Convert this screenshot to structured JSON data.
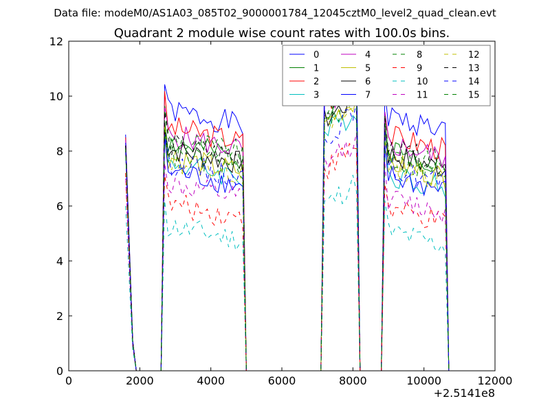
{
  "header": {
    "data_file_text": "Data file: modeM0/AS1A03_085T02_9000001784_12045cztM0_level2_quad_clean.evt"
  },
  "chart_data": {
    "type": "line",
    "title": "Quadrant 2 module wise count rates with 100.0s bins.",
    "xlabel": "",
    "ylabel": "",
    "x_offset_label": "+2.5141e8",
    "xlim": [
      0,
      12000
    ],
    "ylim": [
      0,
      12
    ],
    "x_ticks": [
      0,
      2000,
      4000,
      6000,
      8000,
      10000,
      12000
    ],
    "y_ticks": [
      0,
      2,
      4,
      6,
      8,
      10,
      12
    ],
    "grid": false,
    "legend_position": "top-right",
    "legend_columns": 4,
    "gaps": [
      {
        "drop": 1550,
        "resume": 2620
      },
      {
        "drop": 5000,
        "resume": 7150
      },
      {
        "drop": 8150,
        "resume": 8850
      }
    ],
    "segments": [
      {
        "start": 1600,
        "end": 1800
      },
      {
        "start": 2700,
        "end": 4900
      },
      {
        "start": 7200,
        "end": 8100
      },
      {
        "start": 8900,
        "end": 10600
      }
    ],
    "series": [
      {
        "name": "0",
        "color": "#0000ff",
        "dash": false,
        "levels": [
          8.6,
          9.5,
          10.5,
          9.3
        ]
      },
      {
        "name": "1",
        "color": "#008000",
        "dash": false,
        "levels": [
          8.2,
          8.3,
          9.4,
          8.1
        ]
      },
      {
        "name": "2",
        "color": "#ff0000",
        "dash": false,
        "levels": [
          8.5,
          8.9,
          9.7,
          8.6
        ]
      },
      {
        "name": "3",
        "color": "#00bfbf",
        "dash": false,
        "levels": [
          8.1,
          7.6,
          8.6,
          7.2
        ]
      },
      {
        "name": "4",
        "color": "#bf00bf",
        "dash": false,
        "levels": [
          8.4,
          8.6,
          9.6,
          8.3
        ]
      },
      {
        "name": "5",
        "color": "#bfbf00",
        "dash": false,
        "levels": [
          8.0,
          7.8,
          9.0,
          7.6
        ]
      },
      {
        "name": "6",
        "color": "#000000",
        "dash": false,
        "levels": [
          8.2,
          8.1,
          9.1,
          7.9
        ]
      },
      {
        "name": "7",
        "color": "#0000ff",
        "dash": false,
        "levels": [
          8.3,
          7.3,
          9.8,
          7.1
        ]
      },
      {
        "name": "8",
        "color": "#008000",
        "dash": true,
        "levels": [
          8.1,
          8.5,
          9.2,
          8.0
        ]
      },
      {
        "name": "9",
        "color": "#ff0000",
        "dash": true,
        "levels": [
          7.2,
          6.1,
          7.3,
          5.9
        ]
      },
      {
        "name": "10",
        "color": "#00bfbf",
        "dash": true,
        "levels": [
          6.0,
          5.3,
          6.0,
          5.1
        ]
      },
      {
        "name": "11",
        "color": "#bf00bf",
        "dash": true,
        "levels": [
          7.0,
          6.8,
          7.5,
          6.3
        ]
      },
      {
        "name": "12",
        "color": "#bfbf00",
        "dash": true,
        "levels": [
          8.0,
          7.7,
          8.7,
          7.5
        ]
      },
      {
        "name": "13",
        "color": "#000000",
        "dash": true,
        "levels": [
          8.2,
          8.3,
          9.3,
          8.1
        ]
      },
      {
        "name": "14",
        "color": "#0000ff",
        "dash": true,
        "levels": [
          8.0,
          7.6,
          8.5,
          7.4
        ]
      },
      {
        "name": "15",
        "color": "#008000",
        "dash": true,
        "levels": [
          8.1,
          7.9,
          9.1,
          7.7
        ]
      }
    ]
  }
}
